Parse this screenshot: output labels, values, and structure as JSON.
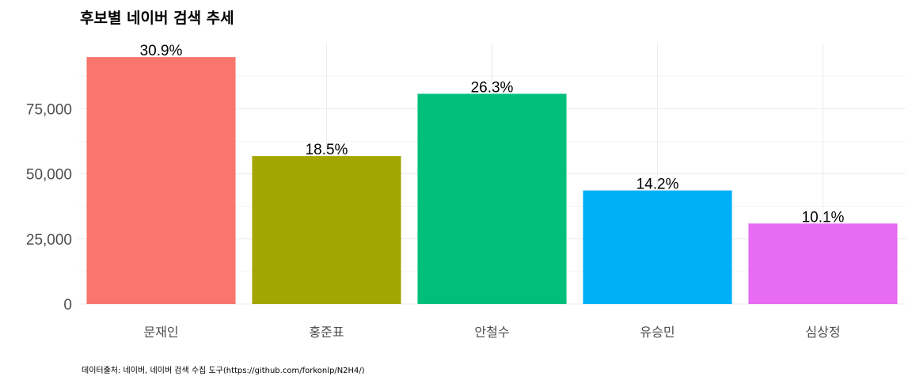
{
  "chart_data": {
    "type": "bar",
    "title": "후보별 네이버 검색 추세",
    "caption": "데이터출처: 네이버, 네이버 검색 수집 도구(https://github.com/forkonlp/N2H4/)",
    "xlabel": "",
    "ylabel": "",
    "categories": [
      "문재인",
      "홍준표",
      "안철수",
      "유승민",
      "심상정"
    ],
    "values": [
      94800,
      56800,
      80700,
      43600,
      30900
    ],
    "labels": [
      "30.9%",
      "18.5%",
      "26.3%",
      "14.2%",
      "10.1%"
    ],
    "colors": [
      "#F8766D",
      "#A3A500",
      "#00BF7D",
      "#00B0F6",
      "#E76BF3"
    ],
    "ylim": [
      0,
      100000
    ],
    "yticks": [
      0,
      25000,
      50000,
      75000
    ],
    "ytick_labels": [
      "0",
      "25,000",
      "50,000",
      "75,000"
    ],
    "grid": true,
    "legend": "none"
  }
}
